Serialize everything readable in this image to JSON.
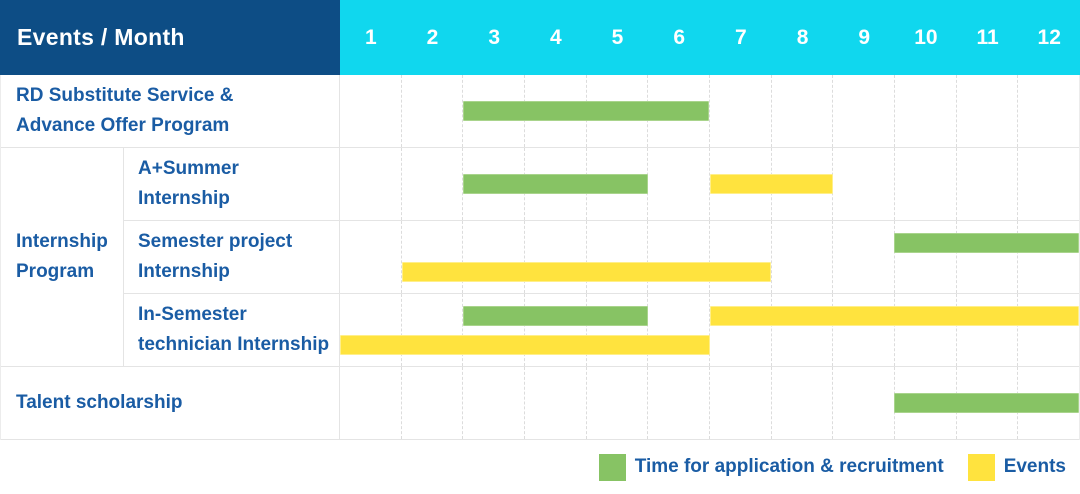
{
  "header": {
    "title": "Events / Month",
    "months": [
      "1",
      "2",
      "3",
      "4",
      "5",
      "6",
      "7",
      "8",
      "9",
      "10",
      "11",
      "12"
    ]
  },
  "group_label_lines": [
    "Internship",
    "Program"
  ],
  "rows": [
    {
      "label_lines": [
        "RD Substitute Service &",
        "Advance Offer Program"
      ],
      "lines": [
        [
          {
            "type": "application",
            "start": 3,
            "end": 6
          }
        ]
      ]
    },
    {
      "label_lines": [
        "A+Summer",
        "Internship"
      ],
      "lines": [
        [
          {
            "type": "application",
            "start": 3,
            "end": 5
          },
          {
            "type": "event",
            "start": 7,
            "end": 8
          }
        ]
      ]
    },
    {
      "label_lines": [
        "Semester project",
        "Internship"
      ],
      "lines": [
        [
          {
            "type": "application",
            "start": 10,
            "end": 12
          }
        ],
        [
          {
            "type": "event",
            "start": 2,
            "end": 7
          }
        ]
      ]
    },
    {
      "label_lines": [
        "In-Semester",
        "technician Internship"
      ],
      "lines": [
        [
          {
            "type": "application",
            "start": 3,
            "end": 5
          },
          {
            "type": "event",
            "start": 7,
            "end": 12
          }
        ],
        [
          {
            "type": "event",
            "start": 1,
            "end": 6
          }
        ]
      ]
    },
    {
      "label_lines": [
        "Talent scholarship"
      ],
      "lines": [
        [
          {
            "type": "application",
            "start": 10,
            "end": 12
          }
        ]
      ]
    }
  ],
  "legend": {
    "items": [
      {
        "type": "application",
        "label": "Time for application & recruitment"
      },
      {
        "type": "event",
        "label": "Events"
      }
    ]
  },
  "colors": {
    "header_bg": "#0d4d85",
    "months_bg": "#10d7ee",
    "text_blue": "#1a5ca4",
    "application": "#87c364",
    "event": "#ffe33e"
  },
  "chart_data": {
    "type": "bar",
    "subtype": "gantt-schedule",
    "title": "Events / Month",
    "x_axis": {
      "label": "Month",
      "ticks": [
        1,
        2,
        3,
        4,
        5,
        6,
        7,
        8,
        9,
        10,
        11,
        12
      ],
      "range": [
        1,
        12
      ]
    },
    "legend_entries": [
      "Time for application & recruitment",
      "Events"
    ],
    "legend_position": "bottom-right",
    "grid": "dashed-vertical-month-lines",
    "rows": [
      {
        "category": "RD Substitute Service & Advance Offer Program",
        "group": null,
        "bars": [
          {
            "series": "Time for application & recruitment",
            "start_month": 3,
            "end_month": 6
          }
        ]
      },
      {
        "category": "A+Summer Internship",
        "group": "Internship Program",
        "bars": [
          {
            "series": "Time for application & recruitment",
            "start_month": 3,
            "end_month": 5
          },
          {
            "series": "Events",
            "start_month": 7,
            "end_month": 8
          }
        ]
      },
      {
        "category": "Semester project Internship",
        "group": "Internship Program",
        "bars": [
          {
            "series": "Time for application & recruitment",
            "start_month": 10,
            "end_month": 12
          },
          {
            "series": "Events",
            "start_month": 2,
            "end_month": 7
          }
        ]
      },
      {
        "category": "In-Semester technician Internship",
        "group": "Internship Program",
        "bars": [
          {
            "series": "Time for application & recruitment",
            "start_month": 3,
            "end_month": 5
          },
          {
            "series": "Events",
            "start_month": 7,
            "end_month": 12
          },
          {
            "series": "Events",
            "start_month": 1,
            "end_month": 6
          }
        ]
      },
      {
        "category": "Talent scholarship",
        "group": null,
        "bars": [
          {
            "series": "Time for application & recruitment",
            "start_month": 10,
            "end_month": 12
          }
        ]
      }
    ]
  }
}
